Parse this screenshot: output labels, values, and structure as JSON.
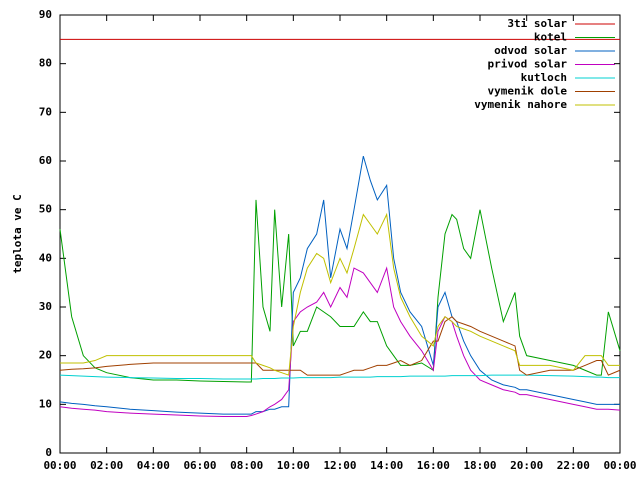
{
  "chart_data": {
    "type": "line",
    "y_label": "teplota ve C",
    "x": [
      0,
      0.5,
      1,
      1.5,
      2,
      3,
      4,
      5,
      6,
      7,
      8,
      8.2,
      8.4,
      8.7,
      9,
      9.2,
      9.5,
      9.8,
      10,
      10.3,
      10.6,
      11,
      11.3,
      11.6,
      12,
      12.3,
      12.6,
      13,
      13.3,
      13.6,
      14,
      14.3,
      14.6,
      15,
      15.5,
      16,
      16.2,
      16.5,
      16.8,
      17,
      17.3,
      17.6,
      18,
      18.5,
      19,
      19.5,
      19.7,
      20,
      21,
      22,
      22.5,
      23,
      23.2,
      23.5,
      24
    ],
    "xlim": [
      0,
      24
    ],
    "xticks": [
      {
        "value": 0,
        "label": "00:00"
      },
      {
        "value": 2,
        "label": "02:00"
      },
      {
        "value": 4,
        "label": "04:00"
      },
      {
        "value": 6,
        "label": "06:00"
      },
      {
        "value": 8,
        "label": "08:00"
      },
      {
        "value": 10,
        "label": "10:00"
      },
      {
        "value": 12,
        "label": "12:00"
      },
      {
        "value": 14,
        "label": "14:00"
      },
      {
        "value": 16,
        "label": "16:00"
      },
      {
        "value": 18,
        "label": "18:00"
      },
      {
        "value": 20,
        "label": "20:00"
      },
      {
        "value": 22,
        "label": "22:00"
      },
      {
        "value": 24,
        "label": "00:00"
      }
    ],
    "ylim": [
      0,
      90
    ],
    "yticks": [
      0,
      10,
      20,
      30,
      40,
      50,
      60,
      70,
      80,
      90
    ],
    "legend": "top-right",
    "series": [
      {
        "name": "3ti solar",
        "color": "#cc0000",
        "values": [
          85,
          85,
          85,
          85,
          85,
          85,
          85,
          85,
          85,
          85,
          85,
          85,
          85,
          85,
          85,
          85,
          85,
          85,
          85,
          85,
          85,
          85,
          85,
          85,
          85,
          85,
          85,
          85,
          85,
          85,
          85,
          85,
          85,
          85,
          85,
          85,
          85,
          85,
          85,
          85,
          85,
          85,
          85,
          85,
          85,
          85,
          85,
          85,
          85,
          85,
          85,
          85,
          85,
          85,
          85
        ]
      },
      {
        "name": "kotel",
        "color": "#00a000",
        "values": [
          46,
          28,
          20,
          17.5,
          16.5,
          15.5,
          15,
          15,
          14.8,
          14.7,
          14.6,
          14.6,
          52,
          30,
          25,
          50,
          30,
          45,
          22,
          25,
          25,
          30,
          29,
          28,
          26,
          26,
          26,
          29,
          27,
          27,
          22,
          20,
          18,
          18,
          18.5,
          17,
          32,
          45,
          49,
          48,
          42,
          40,
          50,
          38,
          27,
          33,
          24,
          20,
          19,
          18,
          17,
          16,
          16,
          29,
          21
        ]
      },
      {
        "name": "odvod solar",
        "color": "#0060c0",
        "values": [
          10.5,
          10.2,
          10,
          9.7,
          9.5,
          9,
          8.7,
          8.4,
          8.2,
          8,
          8,
          8,
          8.5,
          8.5,
          9,
          9,
          9.5,
          9.5,
          33,
          36,
          42,
          45,
          52,
          36,
          46,
          42,
          50,
          61,
          56,
          52,
          55,
          40,
          33,
          29,
          26,
          18,
          30,
          33,
          28,
          27,
          23,
          20,
          17,
          15,
          14,
          13.5,
          13,
          13,
          12,
          11,
          10.5,
          10,
          10,
          10,
          10
        ]
      },
      {
        "name": "privod solar",
        "color": "#c000c0",
        "values": [
          9.5,
          9.2,
          9,
          8.8,
          8.5,
          8.2,
          8,
          7.8,
          7.6,
          7.5,
          7.5,
          7.7,
          8,
          8.5,
          9.5,
          10,
          11,
          13,
          27,
          29,
          30,
          31,
          33,
          30,
          34,
          32,
          38,
          37,
          35,
          33,
          38,
          30,
          27,
          24,
          21,
          17,
          25,
          28,
          27,
          24,
          20,
          17,
          15,
          14,
          13,
          12.5,
          12,
          12,
          11,
          10,
          9.5,
          9,
          9,
          9,
          8.8
        ]
      },
      {
        "name": "kutloch",
        "color": "#00d0d0",
        "values": [
          16,
          15.9,
          15.8,
          15.7,
          15.6,
          15.5,
          15.4,
          15.3,
          15.3,
          15.2,
          15.2,
          15.2,
          15.2,
          15.3,
          15.3,
          15.3,
          15.4,
          15.4,
          15.4,
          15.5,
          15.5,
          15.5,
          15.5,
          15.5,
          15.6,
          15.6,
          15.6,
          15.6,
          15.6,
          15.7,
          15.7,
          15.7,
          15.7,
          15.8,
          15.8,
          15.8,
          15.8,
          15.8,
          15.9,
          15.9,
          15.9,
          15.9,
          15.9,
          16,
          16,
          16,
          16,
          16,
          15.9,
          15.8,
          15.7,
          15.6,
          15.6,
          15.5,
          15.5
        ]
      },
      {
        "name": "vymenik dole",
        "color": "#a04000",
        "values": [
          17,
          17.2,
          17.3,
          17.5,
          17.8,
          18.2,
          18.5,
          18.5,
          18.5,
          18.5,
          18.5,
          18.5,
          18.5,
          17,
          17,
          17,
          17,
          17,
          17,
          17,
          16,
          16,
          16,
          16,
          16,
          16.5,
          17,
          17,
          17.5,
          18,
          18,
          18.5,
          19,
          18,
          19,
          23,
          23,
          27,
          28,
          27,
          26.5,
          26,
          25,
          24,
          23,
          22,
          17,
          16,
          17,
          17,
          18,
          19,
          19,
          16,
          17
        ]
      },
      {
        "name": "vymenik nahore",
        "color": "#c0c000",
        "values": [
          18.5,
          18.5,
          18.5,
          19,
          20,
          20,
          20,
          20,
          20,
          20,
          20,
          20,
          18.5,
          18,
          17.5,
          17,
          16.5,
          16,
          26,
          33,
          38,
          41,
          40,
          35,
          40,
          37,
          42,
          49,
          47,
          45,
          49,
          38,
          32,
          28,
          24,
          22,
          26,
          28,
          27,
          26,
          25.5,
          25,
          24,
          23,
          22,
          21,
          18,
          18,
          18,
          17,
          20,
          20,
          20,
          18,
          18
        ]
      }
    ]
  }
}
